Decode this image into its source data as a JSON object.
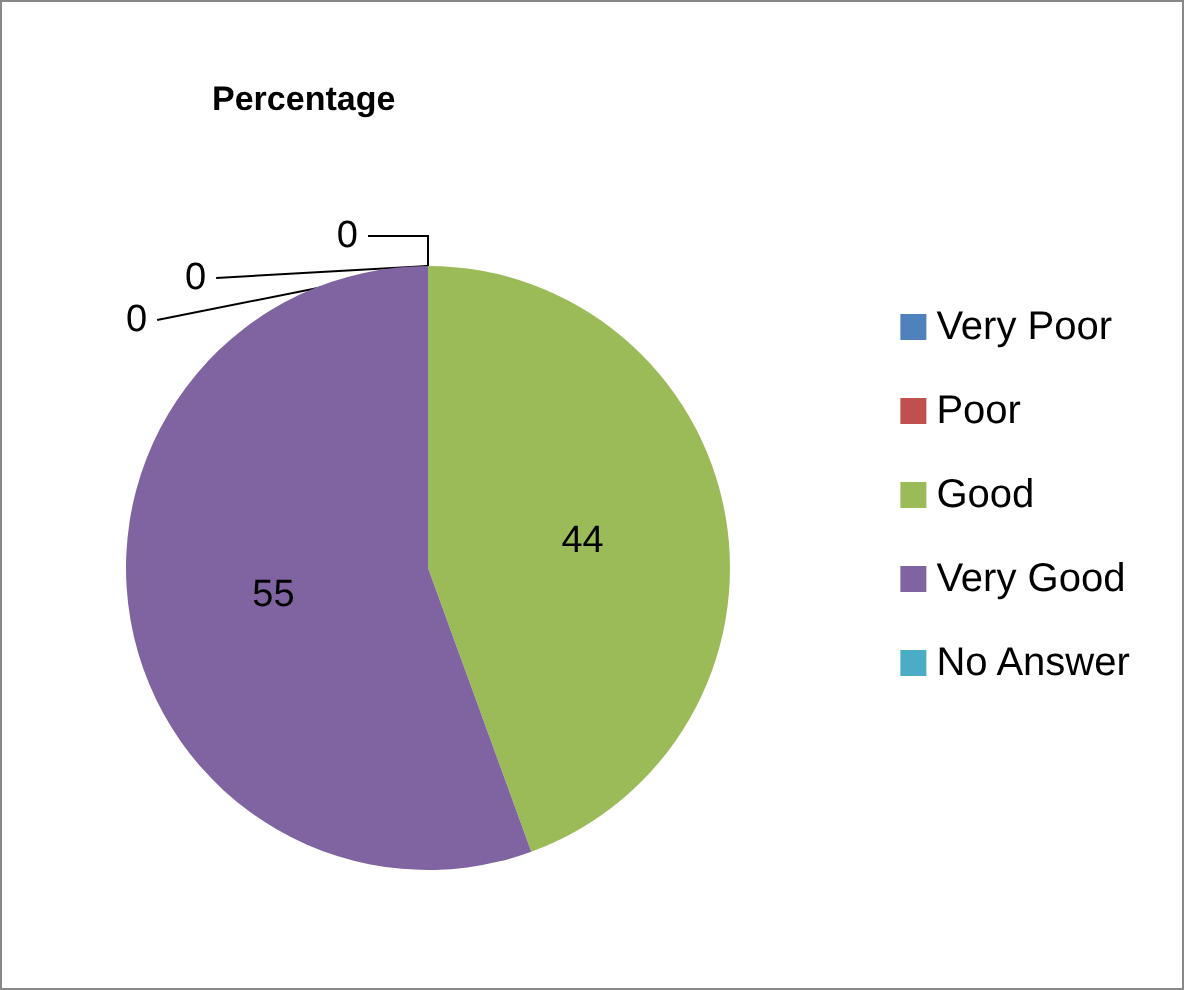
{
  "chart_data": {
    "type": "pie",
    "title": "Percentage",
    "categories": [
      "Very Poor",
      "Poor",
      "Good",
      "Very Good",
      "No Answer"
    ],
    "values": [
      0,
      0,
      44,
      55,
      0
    ],
    "value_labels": [
      "0",
      "0",
      "44",
      "55",
      "0"
    ],
    "colors": [
      "#4f81bd",
      "#c0504d",
      "#9bbb59",
      "#8064a2",
      "#4bacc6"
    ],
    "legend": "right"
  }
}
